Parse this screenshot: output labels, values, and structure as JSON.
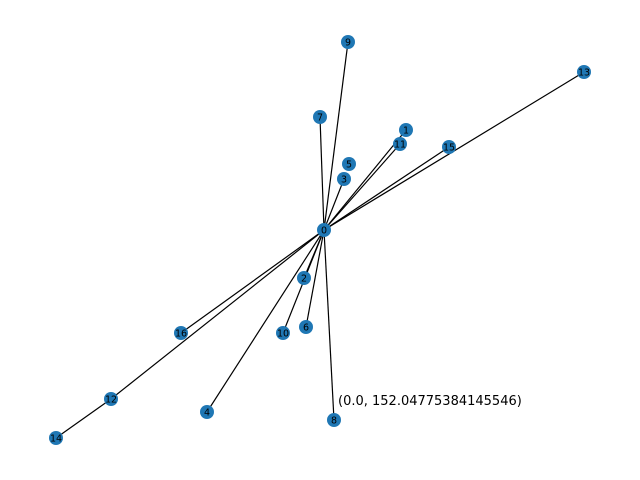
{
  "graph": {
    "nodes": [
      {
        "id": "0",
        "label": "0"
      },
      {
        "id": "1",
        "label": "1"
      },
      {
        "id": "2",
        "label": "2"
      },
      {
        "id": "3",
        "label": "3"
      },
      {
        "id": "4",
        "label": "4"
      },
      {
        "id": "5",
        "label": "5"
      },
      {
        "id": "6",
        "label": "6"
      },
      {
        "id": "7",
        "label": "7"
      },
      {
        "id": "8",
        "label": "8"
      },
      {
        "id": "9",
        "label": "9"
      },
      {
        "id": "10",
        "label": "10"
      },
      {
        "id": "11",
        "label": "11"
      },
      {
        "id": "12",
        "label": "12"
      },
      {
        "id": "13",
        "label": "13"
      },
      {
        "id": "14",
        "label": "14"
      },
      {
        "id": "15",
        "label": "15"
      },
      {
        "id": "16",
        "label": "16"
      }
    ],
    "edges": [
      [
        "0",
        "1"
      ],
      [
        "0",
        "2"
      ],
      [
        "0",
        "3"
      ],
      [
        "0",
        "4"
      ],
      [
        "0",
        "6"
      ],
      [
        "0",
        "7"
      ],
      [
        "0",
        "8"
      ],
      [
        "0",
        "9"
      ],
      [
        "0",
        "10"
      ],
      [
        "0",
        "11"
      ],
      [
        "0",
        "12"
      ],
      [
        "0",
        "13"
      ],
      [
        "0",
        "15"
      ],
      [
        "0",
        "16"
      ],
      [
        "12",
        "14"
      ]
    ],
    "node_color": "#1f77b4",
    "edge_color": "#000000"
  },
  "readout": {
    "text": "(0.0, 152.04775384145546)"
  }
}
